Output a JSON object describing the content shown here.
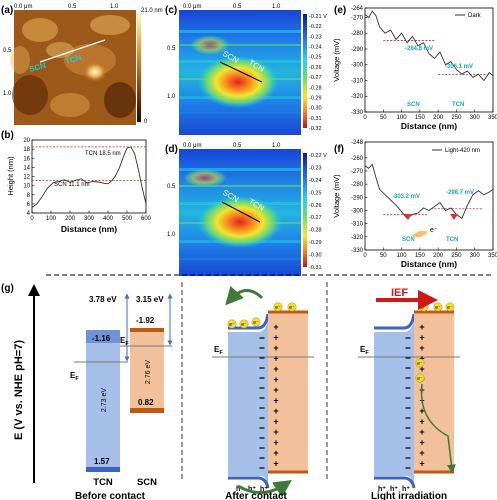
{
  "panels": {
    "a": {
      "label": "(a)",
      "x_ticks": [
        "0.0 μm",
        "0.5",
        "1.0"
      ],
      "y_ticks": [
        "0.5",
        "1.0"
      ],
      "colorbar_max": "21.0 nm",
      "colorbar_min": "0",
      "annotations": [
        "SCN",
        "TCN"
      ]
    },
    "b": {
      "label": "(b)",
      "ylabel": "Height (nm)",
      "xlabel": "Distance (nm)",
      "annotations": [
        "TCN 18.5 nm",
        "SCN 11.1 nm"
      ]
    },
    "c": {
      "label": "(c)",
      "x_ticks": [
        "0.0 μm",
        "0.5",
        "1.0"
      ],
      "y_ticks": [
        "0.5",
        "1.0"
      ],
      "colorbar_ticks": [
        "-0.21 V",
        "-0.22",
        "-0.23",
        "-0.24",
        "-0.25",
        "-0.26",
        "-0.27",
        "-0.28",
        "-0.29",
        "-0.30",
        "-0.31",
        "-0.32"
      ],
      "annotations": [
        "SCN",
        "TCN"
      ]
    },
    "d": {
      "label": "(d)",
      "x_ticks": [
        "0.0 μm",
        "0.5",
        "1.0"
      ],
      "y_ticks": [
        "0.5",
        "1.0"
      ],
      "colorbar_ticks": [
        "-0.22 V",
        "-0.23",
        "-0.24",
        "-0.25",
        "-0.26",
        "-0.27",
        "-0.28",
        "-0.29",
        "-0.30",
        "-0.31"
      ],
      "annotations": [
        "SCN",
        "TCN"
      ]
    },
    "e": {
      "label": "(e)",
      "ylabel": "Voltage (mV)",
      "xlabel": "Distance (nm)",
      "legend": "Dark",
      "annotations": [
        "-284.6 mV",
        "-306.1 mV",
        "SCN",
        "TCN"
      ]
    },
    "f": {
      "label": "(f)",
      "ylabel": "Voltage (mV)",
      "xlabel": "Distance (nm)",
      "legend": "Light-420 nm",
      "annotations": [
        "-303.2 mV",
        "-298.7 mV",
        "SCN",
        "TCN",
        "e⁻"
      ]
    },
    "g": {
      "label": "(g)",
      "yaxis_label": "E (V vs. NHE pH=7)",
      "titles": [
        "Before contact",
        "After contact",
        "Light irradiation"
      ],
      "tcn": {
        "name": "TCN",
        "cb": "-1.16",
        "vb": "1.57",
        "gap": "2.73 eV",
        "wf": "3.78 eV"
      },
      "scn": {
        "name": "SCN",
        "cb": "-1.92",
        "vb": "0.82",
        "gap": "2.76 eV",
        "wf": "3.15 eV"
      },
      "ef": "E",
      "ef_sub": "F",
      "ief": "IEF",
      "electron": "e⁻",
      "hole": "h⁺",
      "plus": "+"
    }
  },
  "chart_data": [
    {
      "type": "line",
      "panel": "b",
      "xlabel": "Distance (nm)",
      "ylabel": "Height (nm)",
      "xlim": [
        0,
        600
      ],
      "ylim": [
        4,
        20
      ],
      "x_ticks": [
        0,
        100,
        200,
        300,
        400,
        500,
        600
      ],
      "y_ticks": [
        4,
        6,
        8,
        10,
        12,
        14,
        16,
        18,
        20
      ],
      "reference_lines": [
        {
          "y": 18.5,
          "label": "TCN 18.5 nm"
        },
        {
          "y": 11.1,
          "label": "SCN 11.1 nm"
        }
      ],
      "series": [
        {
          "x": [
            0,
            25,
            50,
            80,
            110,
            140,
            170,
            200,
            230,
            260,
            290,
            320,
            350,
            380,
            400,
            420,
            440,
            460,
            480,
            500,
            520,
            540,
            560,
            580,
            600
          ],
          "y": [
            5.2,
            6.0,
            7.4,
            9.4,
            10.6,
            10.9,
            11.3,
            10.7,
            11.2,
            11.5,
            10.6,
            10.9,
            10.8,
            10.5,
            10.4,
            11.1,
            12.2,
            13.9,
            16.2,
            18.2,
            18.5,
            17.0,
            13.5,
            9.5,
            6.0
          ]
        }
      ]
    },
    {
      "type": "line",
      "panel": "e",
      "xlabel": "Distance (nm)",
      "ylabel": "Voltage (mV)",
      "xlim": [
        0,
        350
      ],
      "ylim": [
        -330,
        -264
      ],
      "x_ticks": [
        0,
        50,
        100,
        150,
        200,
        250,
        300,
        350
      ],
      "y_ticks": [
        -264,
        -270,
        -280,
        -290,
        -300,
        -310,
        -320,
        -330
      ],
      "reference_lines": [
        {
          "y": -284.6,
          "label": "-284.6 mV"
        },
        {
          "y": -306.1,
          "label": "-306.1 mV"
        }
      ],
      "series": [
        {
          "name": "Dark",
          "x": [
            0,
            10,
            20,
            30,
            40,
            55,
            70,
            85,
            100,
            115,
            130,
            145,
            160,
            175,
            190,
            205,
            220,
            235,
            250,
            265,
            280,
            295,
            310,
            325,
            340,
            350
          ],
          "y": [
            -268,
            -270,
            -266,
            -269,
            -276,
            -280,
            -278,
            -284,
            -280,
            -286,
            -282,
            -288,
            -286,
            -293,
            -296,
            -292,
            -300,
            -298,
            -303,
            -306,
            -304,
            -308,
            -306,
            -310,
            -305,
            -307
          ]
        }
      ]
    },
    {
      "type": "line",
      "panel": "f",
      "xlabel": "Distance (nm)",
      "ylabel": "Voltage (mV)",
      "xlim": [
        0,
        350
      ],
      "ylim": [
        -330,
        -248
      ],
      "x_ticks": [
        0,
        50,
        100,
        150,
        200,
        250,
        300,
        350
      ],
      "y_ticks": [
        -248,
        -260,
        -270,
        -280,
        -290,
        -300,
        -310,
        -320,
        -330
      ],
      "reference_lines": [
        {
          "y": -303.2,
          "label": "-303.2 mV"
        },
        {
          "y": -298.7,
          "label": "-298.7 mV"
        }
      ],
      "series": [
        {
          "name": "Light-420 nm",
          "x": [
            0,
            10,
            20,
            30,
            40,
            55,
            70,
            85,
            100,
            115,
            130,
            145,
            160,
            175,
            190,
            205,
            220,
            235,
            250,
            265,
            280,
            295,
            310,
            325,
            340,
            350
          ],
          "y": [
            -266,
            -268,
            -265,
            -275,
            -284,
            -288,
            -292,
            -296,
            -301,
            -306,
            -303,
            -302,
            -298,
            -300,
            -297,
            -294,
            -300,
            -298,
            -303,
            -306,
            -296,
            -288,
            -285,
            -288,
            -286,
            -284
          ]
        }
      ]
    }
  ]
}
